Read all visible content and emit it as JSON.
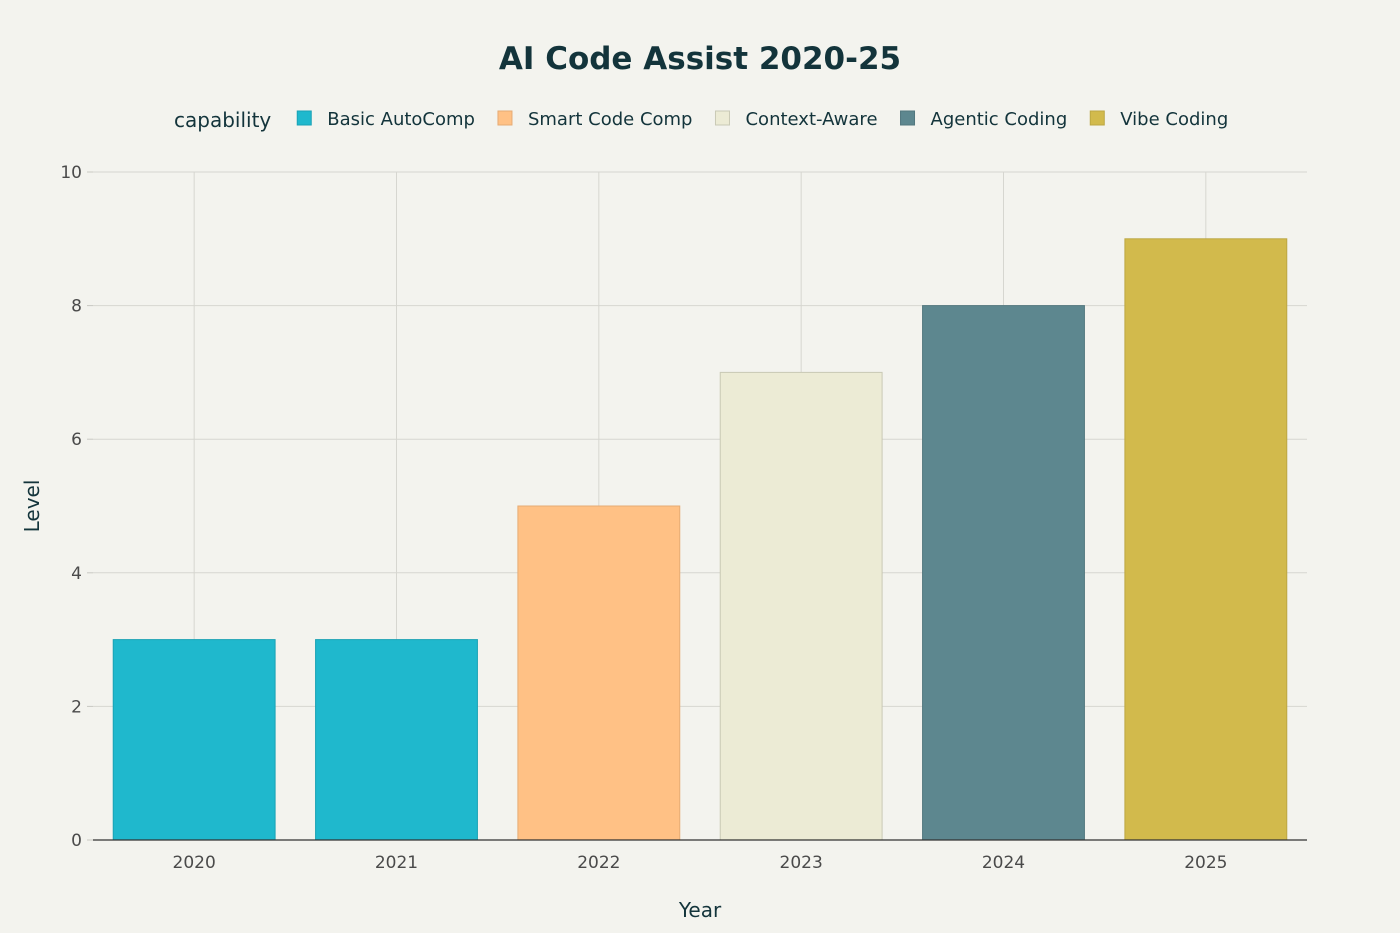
{
  "chart_data": {
    "type": "bar",
    "title": "AI Code Assist 2020-25",
    "xlabel": "Year",
    "ylabel": "Level",
    "ylim": [
      0,
      10
    ],
    "yticks": [
      0,
      2,
      4,
      6,
      8,
      10
    ],
    "grid": true,
    "legend_title": "capability",
    "legend_position": "top",
    "categories": [
      "2020",
      "2021",
      "2022",
      "2023",
      "2024",
      "2025"
    ],
    "series": [
      {
        "name": "Basic AutoComp",
        "color": "#1fb8cd",
        "stroke": "#1aa2b5",
        "points": [
          {
            "x": "2020",
            "y": 3
          },
          {
            "x": "2021",
            "y": 3
          }
        ]
      },
      {
        "name": "Smart Code Comp",
        "color": "#ffc185",
        "stroke": "#e6ab74",
        "points": [
          {
            "x": "2022",
            "y": 5
          }
        ]
      },
      {
        "name": "Context-Aware",
        "color": "#eceBd5",
        "stroke": "#c9c9b5",
        "points": [
          {
            "x": "2023",
            "y": 7
          }
        ]
      },
      {
        "name": "Agentic Coding",
        "color": "#5d878f",
        "stroke": "#52777e",
        "points": [
          {
            "x": "2024",
            "y": 8
          }
        ]
      },
      {
        "name": "Vibe Coding",
        "color": "#d2ba4c",
        "stroke": "#bca743",
        "points": [
          {
            "x": "2025",
            "y": 9
          }
        ]
      }
    ]
  }
}
